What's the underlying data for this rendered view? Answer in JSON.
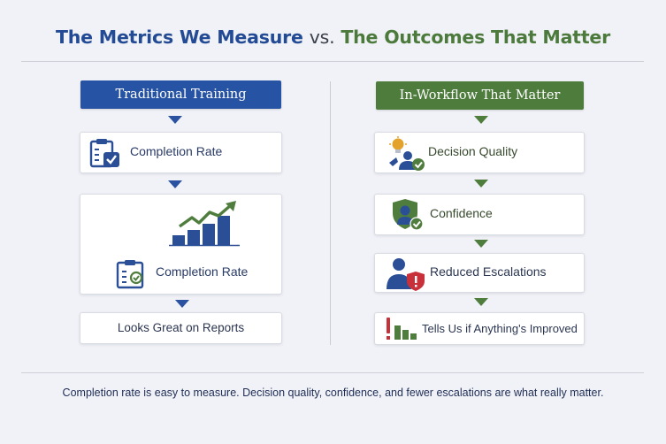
{
  "title": {
    "part1": "The Metrics We Measure",
    "vs": "vs.",
    "part2": "The Outcomes That Matter"
  },
  "left": {
    "header": "Traditional Training",
    "items": [
      {
        "label": "Completion Rate",
        "icon": "clipboard-check-icon"
      },
      {
        "label": "Completion Rate",
        "icon": "clipboard-check-icon"
      },
      {
        "label": "Looks Great on Reports"
      }
    ],
    "chart_icon": "rising-bar-chart-icon"
  },
  "right": {
    "header": "In-Workflow That Matter",
    "items": [
      {
        "label": "Decision Quality",
        "icon": "lightbulb-person-icon"
      },
      {
        "label": "Confidence",
        "icon": "shield-person-icon"
      },
      {
        "label": "Reduced Escalations",
        "icon": "person-alert-icon"
      },
      {
        "label": "Tells Us if Anything's Improved",
        "icon": "alert-bar-chart-icon"
      }
    ]
  },
  "footer": "Completion rate is easy to measure. Decision quality, confidence, and fewer escalations are what really matter.",
  "colors": {
    "blue": "#2653a3",
    "green": "#4d7c3d",
    "red": "#c8313a",
    "gold": "#e2a22c"
  }
}
